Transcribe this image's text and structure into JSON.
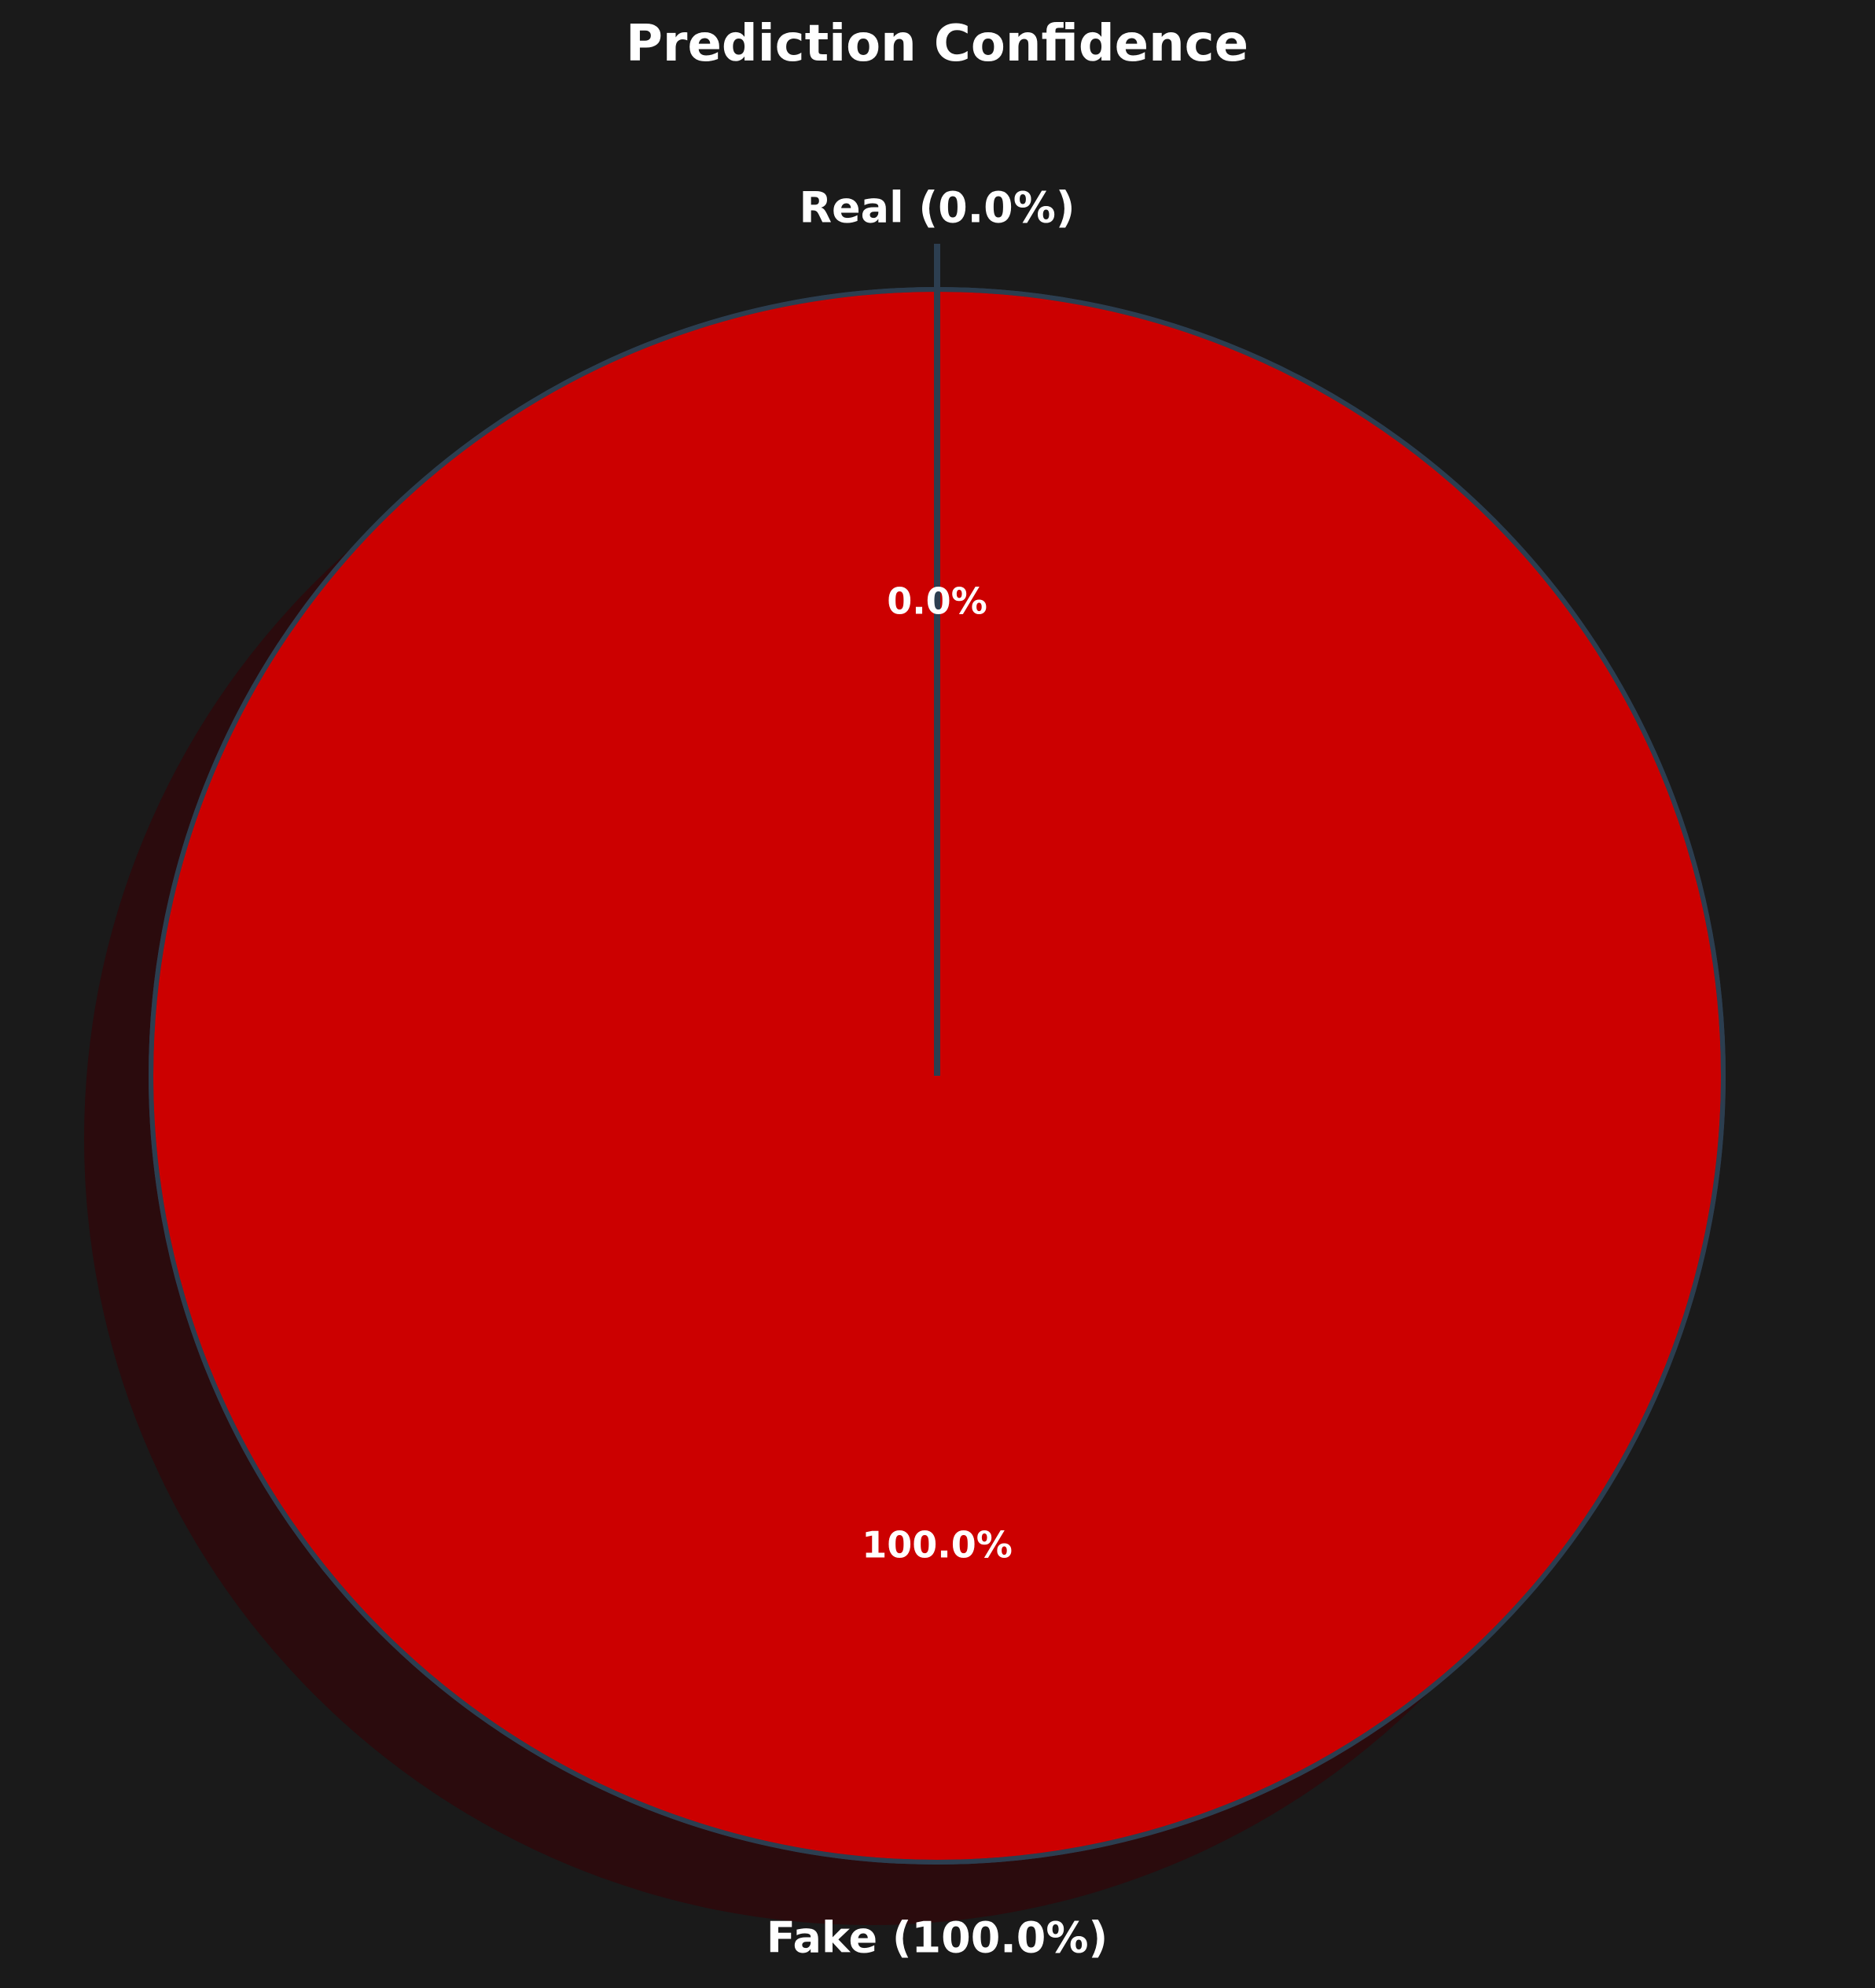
{
  "chart_data": {
    "type": "pie",
    "title": "Prediction Confidence",
    "slices": [
      {
        "label": "Real (0.0%)",
        "value": 0.0,
        "pct_label": "0.0%",
        "color": "#00b050"
      },
      {
        "label": "Fake (100.0%)",
        "value": 100.0,
        "pct_label": "100.0%",
        "color": "#cc0000"
      }
    ],
    "start_angle_deg": 90,
    "shadow": true,
    "edge_color": "#2c3e50",
    "background_color": "#1a1a1a"
  }
}
